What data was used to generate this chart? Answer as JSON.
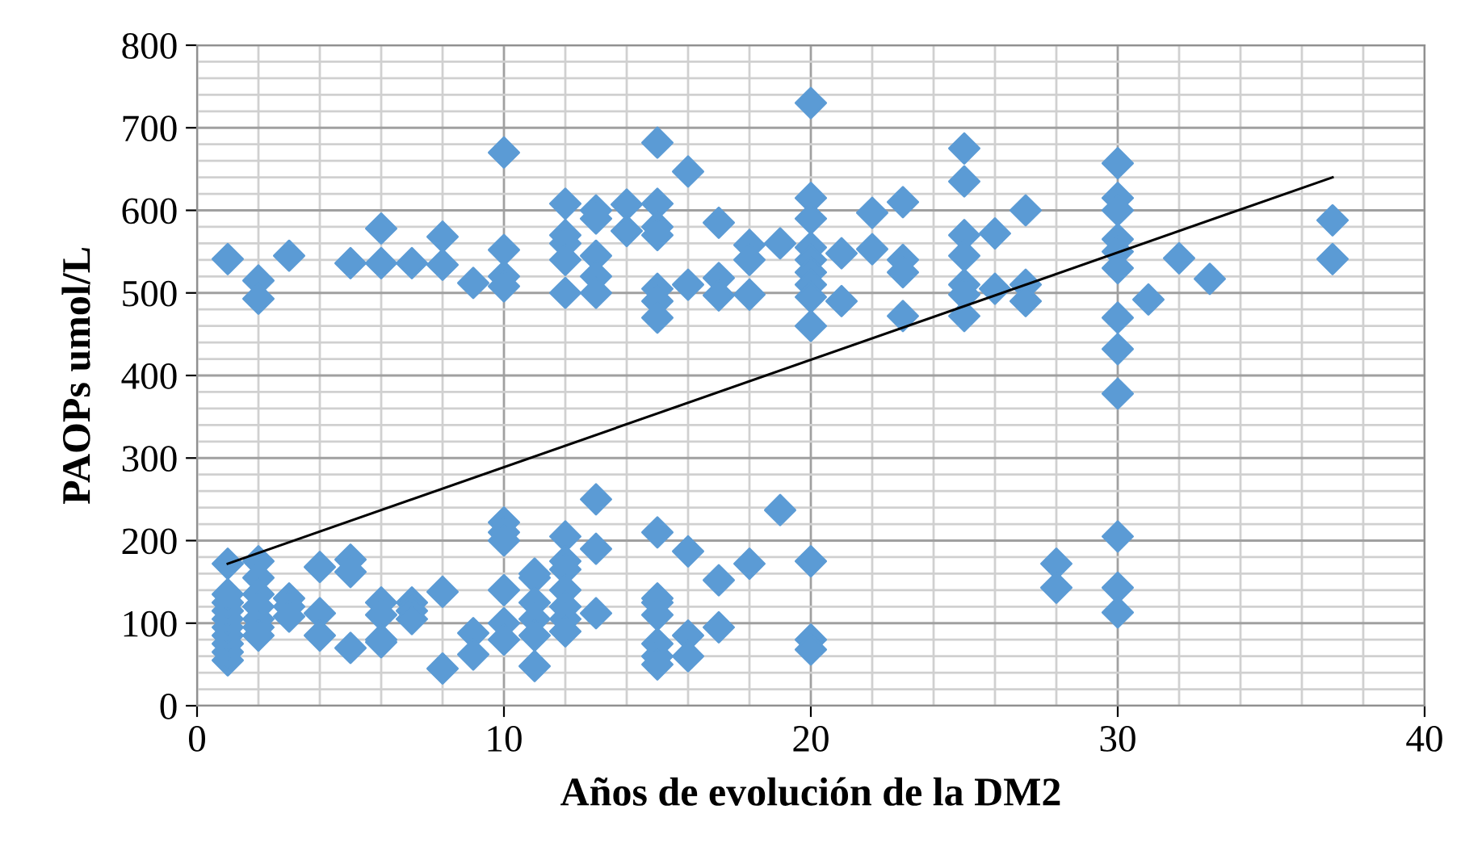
{
  "chart_data": {
    "type": "scatter",
    "xlabel": "Años de evolución de la DM2",
    "ylabel": "PAOPs umol/L",
    "xlim": [
      0,
      40
    ],
    "xticks": [
      0,
      10,
      20,
      30,
      40
    ],
    "ylim": [
      0,
      800
    ],
    "yticks": [
      0,
      100,
      200,
      300,
      400,
      500,
      600,
      700,
      800
    ],
    "grid": true,
    "legend": false,
    "series": [
      {
        "type": "scatter",
        "marker": "diamond",
        "color": "#5b9bd5",
        "x": [
          1,
          1,
          1,
          1,
          1,
          1,
          1,
          1,
          1,
          1,
          1,
          2,
          2,
          2,
          2,
          2,
          2,
          2,
          2,
          2,
          3,
          3,
          3,
          3,
          4,
          4,
          4,
          5,
          5,
          5,
          5,
          6,
          6,
          6,
          6,
          6,
          6,
          7,
          7,
          7,
          7,
          8,
          8,
          8,
          8,
          9,
          9,
          9,
          10,
          10,
          10,
          10,
          10,
          10,
          10,
          10,
          10,
          10,
          11,
          11,
          11,
          11,
          11,
          11,
          12,
          12,
          12,
          12,
          12,
          12,
          12,
          12,
          12,
          12,
          12,
          12,
          13,
          13,
          13,
          13,
          13,
          13,
          13,
          13,
          14,
          14,
          15,
          15,
          15,
          15,
          15,
          15,
          15,
          15,
          15,
          15,
          15,
          15,
          15,
          15,
          16,
          16,
          16,
          16,
          16,
          17,
          17,
          17,
          17,
          17,
          18,
          18,
          18,
          18,
          19,
          19,
          20,
          20,
          20,
          20,
          20,
          20,
          20,
          20,
          20,
          20,
          20,
          20,
          21,
          21,
          22,
          22,
          23,
          23,
          23,
          23,
          25,
          25,
          25,
          25,
          25,
          25,
          25,
          26,
          26,
          27,
          27,
          27,
          28,
          28,
          30,
          30,
          30,
          30,
          30,
          30,
          30,
          30,
          30,
          30,
          30,
          30,
          31,
          32,
          33,
          37,
          37
        ],
        "values": [
          541,
          172,
          55,
          65,
          75,
          85,
          95,
          105,
          115,
          125,
          135,
          515,
          493,
          175,
          155,
          135,
          120,
          105,
          95,
          85,
          545,
          130,
          120,
          108,
          168,
          112,
          85,
          536,
          177,
          162,
          70,
          578,
          536,
          125,
          110,
          80,
          77,
          536,
          125,
          115,
          105,
          568,
          534,
          138,
          45,
          512,
          88,
          62,
          670,
          552,
          520,
          508,
          222,
          210,
          200,
          140,
          100,
          80,
          160,
          155,
          125,
          105,
          85,
          48,
          608,
          570,
          560,
          540,
          500,
          205,
          175,
          165,
          140,
          120,
          105,
          90,
          600,
          590,
          545,
          520,
          500,
          250,
          190,
          112,
          607,
          575,
          682,
          608,
          580,
          570,
          505,
          490,
          470,
          210,
          130,
          125,
          110,
          75,
          60,
          50,
          647,
          510,
          187,
          85,
          60,
          585,
          518,
          497,
          152,
          95,
          558,
          540,
          498,
          172,
          560,
          237,
          730,
          615,
          590,
          555,
          540,
          525,
          510,
          495,
          460,
          175,
          80,
          68,
          548,
          490,
          597,
          553,
          610,
          540,
          525,
          472,
          675,
          635,
          570,
          545,
          510,
          498,
          472,
          572,
          505,
          600,
          510,
          490,
          172,
          143,
          657,
          615,
          600,
          565,
          550,
          530,
          470,
          432,
          378,
          205,
          143,
          113,
          492,
          542,
          517,
          588,
          541
        ]
      },
      {
        "type": "line",
        "marker": "none",
        "line_style": "solid",
        "color": "#000000",
        "x": [
          1,
          37
        ],
        "values": [
          172,
          640
        ]
      }
    ]
  }
}
